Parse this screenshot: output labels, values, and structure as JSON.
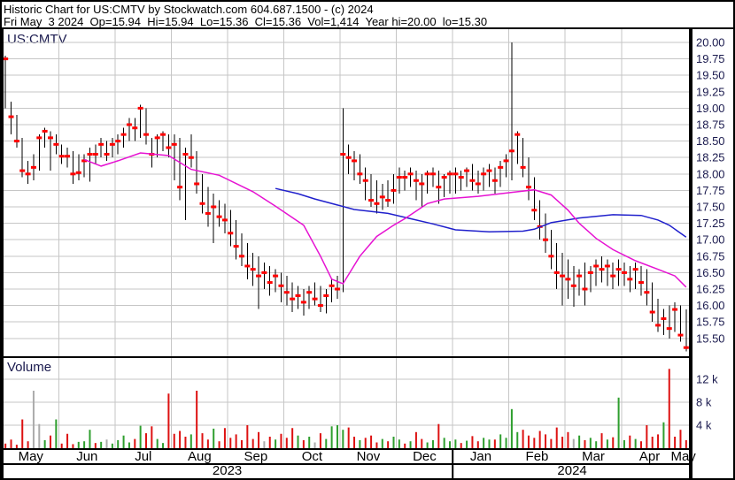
{
  "header": {
    "title_line": "Historic Chart for US:CMTV by Stockwatch.com 604.687.1500 - (c) 2024",
    "info_line": "Fri May  3 2024  Op=15.94  Hi=15.94  Lo=15.36  Cl=15.36  Vol=1,414  Year hi=20.00  lo=15.30"
  },
  "labels": {
    "symbol": "US:CMTV",
    "volume": "Volume"
  },
  "colors": {
    "grid": "#c6c6c6",
    "bar": "#000000",
    "close_tick": "#ff0000",
    "ma_fast": "#e612d2",
    "ma_slow": "#2020cc",
    "vol_up": "#2e9e2e",
    "vol_down": "#dd1111",
    "vol_neutral": "#ababab",
    "axis_text": "#1a1a4e",
    "text": "#000000",
    "border": "#000000"
  },
  "chart_data": {
    "type": "ohlc",
    "symbol": "US:CMTV",
    "title": "Historic Chart for US:CMTV",
    "last_trade": {
      "date": "Fri May 3 2024",
      "open": 15.94,
      "high": 15.94,
      "low": 15.36,
      "close": 15.36,
      "volume": 1414,
      "year_high": 20.0,
      "year_low": 15.3
    },
    "price_axis": {
      "max": 20.0,
      "min": 15.5,
      "step": 0.25
    },
    "volume_axis": {
      "ticks_k": [
        12,
        8,
        4
      ],
      "labels": [
        "12 k",
        "8 k",
        "4 k"
      ]
    },
    "months": [
      "May",
      "Jun",
      "Jul",
      "Aug",
      "Sep",
      "Oct",
      "Nov",
      "Dec",
      "Jan",
      "Feb",
      "Mar",
      "Apr",
      "May"
    ],
    "bars_per_month": 10,
    "years": [
      {
        "label": "2023",
        "from_month": 0,
        "to_month": 8
      },
      {
        "label": "2024",
        "from_month": 8,
        "to_month": 13
      }
    ],
    "bars_format": [
      "high",
      "low",
      "close",
      "volume_k",
      "vol_color r=down g=up y=neutral"
    ],
    "bars": [
      [
        19.8,
        19.0,
        19.75,
        0.8,
        "r"
      ],
      [
        19.1,
        18.6,
        18.87,
        1.5,
        "r"
      ],
      [
        18.9,
        18.4,
        18.5,
        0.6,
        "r"
      ],
      [
        18.55,
        17.95,
        18.05,
        5.0,
        "r"
      ],
      [
        18.2,
        17.85,
        18.0,
        1.2,
        "r"
      ],
      [
        18.3,
        17.9,
        18.1,
        10.0,
        "y"
      ],
      [
        18.6,
        18.05,
        18.55,
        4.2,
        "y"
      ],
      [
        18.7,
        18.4,
        18.65,
        1.4,
        "g"
      ],
      [
        18.65,
        18.05,
        18.55,
        2.2,
        "r"
      ],
      [
        18.6,
        18.3,
        18.45,
        5.0,
        "g"
      ],
      [
        18.45,
        18.15,
        18.27,
        0.8,
        "r"
      ],
      [
        18.4,
        18.1,
        18.27,
        2.5,
        "r"
      ],
      [
        18.35,
        17.85,
        18.0,
        0.7,
        "r"
      ],
      [
        18.3,
        17.9,
        18.02,
        1.1,
        "g"
      ],
      [
        18.3,
        17.95,
        18.2,
        1.2,
        "g"
      ],
      [
        18.4,
        17.88,
        18.3,
        3.2,
        "g"
      ],
      [
        18.45,
        18.15,
        18.3,
        0.9,
        "r"
      ],
      [
        18.55,
        18.25,
        18.45,
        1.1,
        "g"
      ],
      [
        18.5,
        18.2,
        18.3,
        1.5,
        "y"
      ],
      [
        18.55,
        18.25,
        18.45,
        0.8,
        "g"
      ],
      [
        18.6,
        18.3,
        18.5,
        1.4,
        "g"
      ],
      [
        18.7,
        18.4,
        18.6,
        2.2,
        "g"
      ],
      [
        18.85,
        18.5,
        18.75,
        1.0,
        "g"
      ],
      [
        18.85,
        18.5,
        18.7,
        1.6,
        "r"
      ],
      [
        19.05,
        18.55,
        19.0,
        3.9,
        "g"
      ],
      [
        19.0,
        18.45,
        18.6,
        2.6,
        "r"
      ],
      [
        18.55,
        18.1,
        18.3,
        3.8,
        "r"
      ],
      [
        18.6,
        18.25,
        18.55,
        1.6,
        "g"
      ],
      [
        18.65,
        18.35,
        18.6,
        0.9,
        "g"
      ],
      [
        18.6,
        18.25,
        18.4,
        9.5,
        "r"
      ],
      [
        18.6,
        17.9,
        18.45,
        2.5,
        "r"
      ],
      [
        18.55,
        17.6,
        17.8,
        3.0,
        "r"
      ],
      [
        18.4,
        17.3,
        18.3,
        2.0,
        "r"
      ],
      [
        18.6,
        18.1,
        18.25,
        2.4,
        "g"
      ],
      [
        18.35,
        17.7,
        17.85,
        10.0,
        "r"
      ],
      [
        18.0,
        17.4,
        17.55,
        2.6,
        "r"
      ],
      [
        17.8,
        17.2,
        17.4,
        1.5,
        "r"
      ],
      [
        17.7,
        16.95,
        17.5,
        3.4,
        "g"
      ],
      [
        17.6,
        17.2,
        17.35,
        1.2,
        "r"
      ],
      [
        17.55,
        17.1,
        17.3,
        3.5,
        "r"
      ],
      [
        17.45,
        16.9,
        17.1,
        1.8,
        "r"
      ],
      [
        17.3,
        16.7,
        16.9,
        2.4,
        "r"
      ],
      [
        17.1,
        16.6,
        16.75,
        1.4,
        "r"
      ],
      [
        16.95,
        16.4,
        16.6,
        4.0,
        "r"
      ],
      [
        16.8,
        16.3,
        16.55,
        1.6,
        "r"
      ],
      [
        16.75,
        15.95,
        16.45,
        2.8,
        "r"
      ],
      [
        16.65,
        16.25,
        16.5,
        1.2,
        "y"
      ],
      [
        16.6,
        16.15,
        16.35,
        2.0,
        "r"
      ],
      [
        16.55,
        16.2,
        16.45,
        1.5,
        "g"
      ],
      [
        16.5,
        16.05,
        16.3,
        2.5,
        "r"
      ],
      [
        16.45,
        16.0,
        16.2,
        1.8,
        "r"
      ],
      [
        16.35,
        15.9,
        16.1,
        3.5,
        "r"
      ],
      [
        16.3,
        15.95,
        16.15,
        2.2,
        "g"
      ],
      [
        16.25,
        15.85,
        16.05,
        1.4,
        "r"
      ],
      [
        16.3,
        15.95,
        16.2,
        2.0,
        "g"
      ],
      [
        16.35,
        16.0,
        16.1,
        1.0,
        "y"
      ],
      [
        16.3,
        15.9,
        16.0,
        2.6,
        "r"
      ],
      [
        16.25,
        15.88,
        16.15,
        1.6,
        "g"
      ],
      [
        16.4,
        16.05,
        16.3,
        3.8,
        "g"
      ],
      [
        16.45,
        16.1,
        16.25,
        4.0,
        "g"
      ],
      [
        19.0,
        16.2,
        18.3,
        3.2,
        "g"
      ],
      [
        18.45,
        18.0,
        18.25,
        3.6,
        "r"
      ],
      [
        18.35,
        17.9,
        18.2,
        2.0,
        "r"
      ],
      [
        18.3,
        17.85,
        18.0,
        1.4,
        "g"
      ],
      [
        18.1,
        17.6,
        17.9,
        1.8,
        "r"
      ],
      [
        18.0,
        17.5,
        17.6,
        2.2,
        "r"
      ],
      [
        17.9,
        17.4,
        17.55,
        1.0,
        "r"
      ],
      [
        17.85,
        17.45,
        17.65,
        1.6,
        "g"
      ],
      [
        17.9,
        17.5,
        17.6,
        1.2,
        "r"
      ],
      [
        18.0,
        17.55,
        17.75,
        2.0,
        "g"
      ],
      [
        18.1,
        17.7,
        17.95,
        1.5,
        "g"
      ],
      [
        18.05,
        17.75,
        17.95,
        0.8,
        "r"
      ],
      [
        18.1,
        17.8,
        18.0,
        1.2,
        "g"
      ],
      [
        18.05,
        17.6,
        17.9,
        2.8,
        "r"
      ],
      [
        18.0,
        17.5,
        17.85,
        1.6,
        "r"
      ],
      [
        18.05,
        17.7,
        18.0,
        1.0,
        "g"
      ],
      [
        18.1,
        17.8,
        18.0,
        1.4,
        "g"
      ],
      [
        18.05,
        17.55,
        17.8,
        4.2,
        "r"
      ],
      [
        18.0,
        17.65,
        17.95,
        1.8,
        "g"
      ],
      [
        18.05,
        17.7,
        18.0,
        1.2,
        "g"
      ],
      [
        18.1,
        17.7,
        18.0,
        1.5,
        "g"
      ],
      [
        18.05,
        17.75,
        17.95,
        0.9,
        "r"
      ],
      [
        18.1,
        17.8,
        18.05,
        1.3,
        "g"
      ],
      [
        18.15,
        17.75,
        17.9,
        2.1,
        "r"
      ],
      [
        18.05,
        17.7,
        17.85,
        1.2,
        "r"
      ],
      [
        18.1,
        17.75,
        18.0,
        1.8,
        "g"
      ],
      [
        18.15,
        17.8,
        18.05,
        1.5,
        "g"
      ],
      [
        18.1,
        17.7,
        17.9,
        1.5,
        "r"
      ],
      [
        18.2,
        17.8,
        18.1,
        2.4,
        "g"
      ],
      [
        18.3,
        17.95,
        18.2,
        1.8,
        "g"
      ],
      [
        20.0,
        17.9,
        18.35,
        6.8,
        "g"
      ],
      [
        18.65,
        18.15,
        18.6,
        2.8,
        "g"
      ],
      [
        18.55,
        17.95,
        18.1,
        3.2,
        "r"
      ],
      [
        18.25,
        17.6,
        17.8,
        2.2,
        "r"
      ],
      [
        17.95,
        17.3,
        17.45,
        1.8,
        "r"
      ],
      [
        17.6,
        17.0,
        17.2,
        3.0,
        "r"
      ],
      [
        17.4,
        16.8,
        17.0,
        2.4,
        "r"
      ],
      [
        17.15,
        16.55,
        16.75,
        1.6,
        "r"
      ],
      [
        16.95,
        16.25,
        16.5,
        3.6,
        "r"
      ],
      [
        16.8,
        16.0,
        16.45,
        2.0,
        "r"
      ],
      [
        16.7,
        16.1,
        16.4,
        2.8,
        "r"
      ],
      [
        16.6,
        15.98,
        16.3,
        1.6,
        "y"
      ],
      [
        16.55,
        16.15,
        16.45,
        2.2,
        "g"
      ],
      [
        16.65,
        16.0,
        16.25,
        1.4,
        "r"
      ],
      [
        16.6,
        16.2,
        16.5,
        1.8,
        "g"
      ],
      [
        16.7,
        16.3,
        16.6,
        1.2,
        "g"
      ],
      [
        16.75,
        16.35,
        16.55,
        2.6,
        "r"
      ],
      [
        16.7,
        16.3,
        16.6,
        1.5,
        "g"
      ],
      [
        16.65,
        16.25,
        16.45,
        1.9,
        "r"
      ],
      [
        16.7,
        16.3,
        16.55,
        8.8,
        "g"
      ],
      [
        16.65,
        16.3,
        16.5,
        1.4,
        "g"
      ],
      [
        16.6,
        16.2,
        16.4,
        2.2,
        "r"
      ],
      [
        16.65,
        16.25,
        16.55,
        1.6,
        "g"
      ],
      [
        16.6,
        16.15,
        16.35,
        1.2,
        "r"
      ],
      [
        16.55,
        16.0,
        16.2,
        4.0,
        "r"
      ],
      [
        16.35,
        15.75,
        15.9,
        2.0,
        "r"
      ],
      [
        16.1,
        15.6,
        15.7,
        2.4,
        "r"
      ],
      [
        15.95,
        15.55,
        15.8,
        4.5,
        "g"
      ],
      [
        16.0,
        15.5,
        15.65,
        13.8,
        "r"
      ],
      [
        16.05,
        15.6,
        15.94,
        2.0,
        "r"
      ],
      [
        16.0,
        15.45,
        15.55,
        3.2,
        "r"
      ],
      [
        15.94,
        15.3,
        15.36,
        1.4,
        "r"
      ]
    ],
    "ma_fast_magenta": [
      [
        14,
        18.22
      ],
      [
        17,
        18.12
      ],
      [
        20,
        18.2
      ],
      [
        24,
        18.32
      ],
      [
        29,
        18.28
      ],
      [
        33,
        18.07
      ],
      [
        38,
        17.98
      ],
      [
        44,
        17.73
      ],
      [
        48,
        17.51
      ],
      [
        53,
        17.22
      ],
      [
        56,
        16.75
      ],
      [
        58,
        16.4
      ],
      [
        60,
        16.33
      ],
      [
        63,
        16.75
      ],
      [
        66,
        17.05
      ],
      [
        69,
        17.22
      ],
      [
        71,
        17.32
      ],
      [
        75,
        17.55
      ],
      [
        78,
        17.62
      ],
      [
        84,
        17.66
      ],
      [
        90,
        17.72
      ],
      [
        94,
        17.76
      ],
      [
        97,
        17.68
      ],
      [
        100,
        17.45
      ],
      [
        102,
        17.25
      ],
      [
        105,
        17.02
      ],
      [
        108,
        16.85
      ],
      [
        112,
        16.68
      ],
      [
        116,
        16.55
      ],
      [
        119,
        16.45
      ],
      [
        121,
        16.28
      ]
    ],
    "ma_slow_blue": [
      [
        48,
        17.78
      ],
      [
        52,
        17.7
      ],
      [
        55,
        17.62
      ],
      [
        62,
        17.46
      ],
      [
        68,
        17.4
      ],
      [
        72,
        17.32
      ],
      [
        76,
        17.24
      ],
      [
        80,
        17.15
      ],
      [
        86,
        17.12
      ],
      [
        92,
        17.13
      ],
      [
        94,
        17.16
      ],
      [
        97,
        17.26
      ],
      [
        102,
        17.33
      ],
      [
        108,
        17.38
      ],
      [
        113,
        17.37
      ],
      [
        116,
        17.3
      ],
      [
        118,
        17.22
      ],
      [
        121,
        17.04
      ]
    ]
  }
}
